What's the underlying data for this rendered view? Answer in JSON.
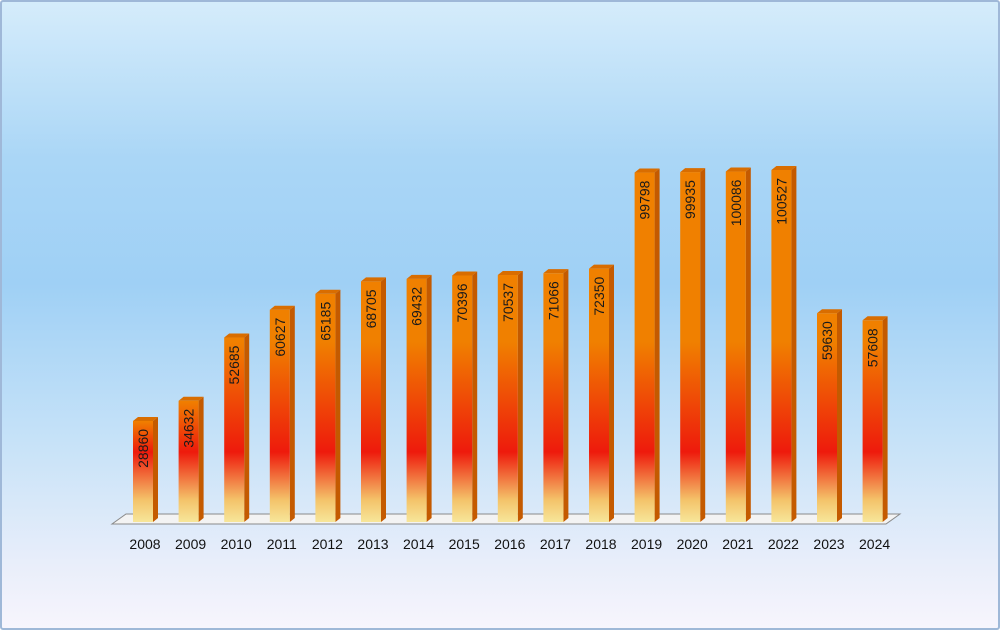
{
  "chart_data": {
    "type": "bar",
    "title": "",
    "xlabel": "",
    "ylabel": "",
    "ylim": [
      0,
      100527
    ],
    "grid": false,
    "categories": [
      "2008",
      "2009",
      "2010",
      "2011",
      "2012",
      "2013",
      "2014",
      "2015",
      "2016",
      "2017",
      "2018",
      "2019",
      "2020",
      "2021",
      "2022",
      "2023",
      "2024"
    ],
    "series": [
      {
        "values": [
          28860,
          34632,
          52685,
          60627,
          65185,
          68705,
          69432,
          70396,
          70537,
          71066,
          72350,
          99798,
          99935,
          100086,
          100527,
          59630,
          57608
        ]
      }
    ],
    "colors": {
      "top": "#f08000",
      "mid": "#ee1a0c",
      "bottom": "#f7e69a",
      "side": "#c45a00"
    }
  }
}
